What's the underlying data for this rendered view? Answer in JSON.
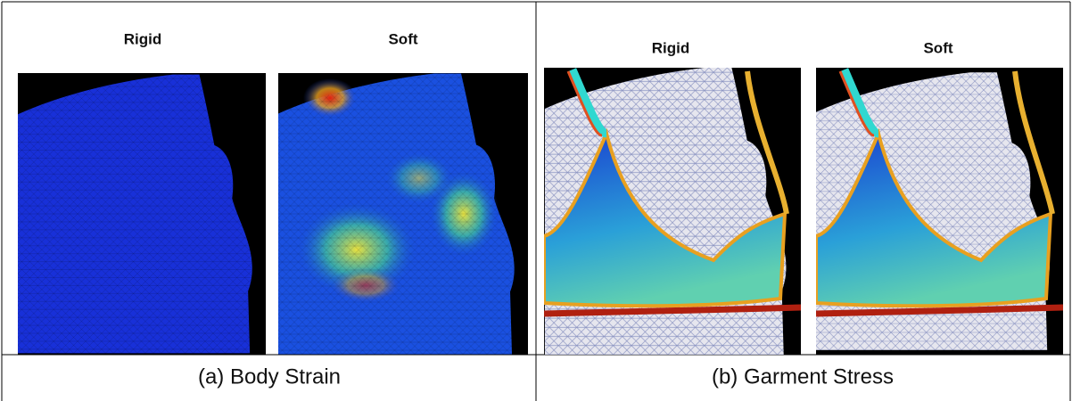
{
  "panels": [
    {
      "caption": "(a) Body Strain",
      "images": [
        {
          "label": "Rigid"
        },
        {
          "label": "Soft"
        }
      ]
    },
    {
      "caption": "(b) Garment Stress",
      "images": [
        {
          "label": "Rigid"
        },
        {
          "label": "Soft"
        }
      ]
    }
  ]
}
